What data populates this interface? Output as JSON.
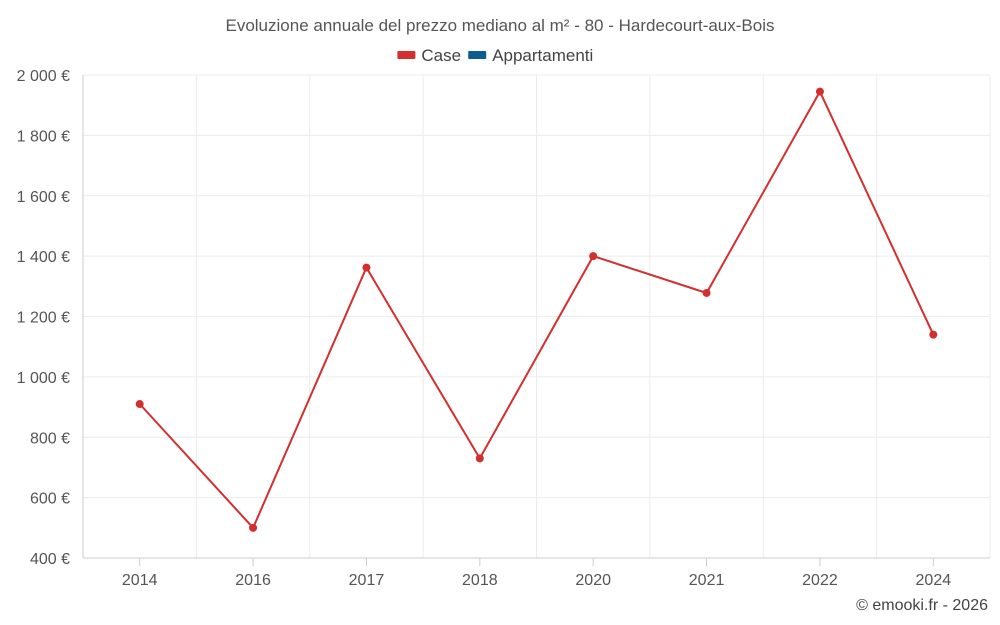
{
  "chart_data": {
    "type": "line",
    "title": "Evoluzione annuale del prezzo mediano al m² - 80 - Hardecourt-aux-Bois",
    "categories": [
      "2014",
      "2016",
      "2017",
      "2018",
      "2020",
      "2021",
      "2022",
      "2024"
    ],
    "series": [
      {
        "name": "Case",
        "color": "#d32f2f",
        "values": [
          910,
          500,
          1362,
          730,
          1400,
          1278,
          1945,
          1140
        ]
      },
      {
        "name": "Appartamenti",
        "color": "#0d5c91",
        "values": [
          null,
          null,
          null,
          null,
          null,
          null,
          null,
          null
        ]
      }
    ],
    "ylim": [
      400,
      2000
    ],
    "yticks": [
      400,
      600,
      800,
      1000,
      1200,
      1400,
      1600,
      1800,
      2000
    ],
    "ytick_labels": [
      "400 €",
      "600 €",
      "800 €",
      "1 000 €",
      "1 200 €",
      "1 400 €",
      "1 600 €",
      "1 800 €",
      "2 000 €"
    ],
    "grid": true,
    "legend_position": "top-center",
    "credit": "© emooki.fr - 2026"
  }
}
